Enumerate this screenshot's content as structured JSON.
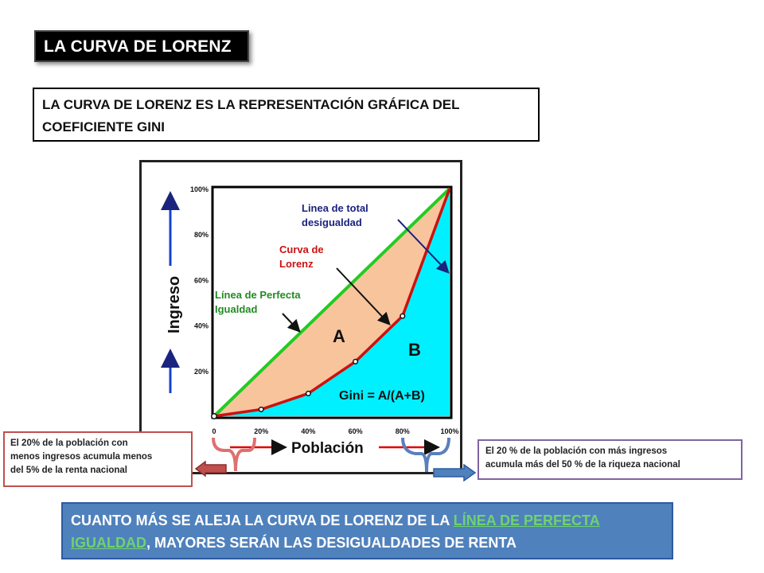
{
  "title": "LA CURVA DE LORENZ",
  "subtitle": {
    "line1": "LA CURVA DE LORENZ ES LA REPRESENTACIÓN GRÁFICA DEL",
    "line2": "COEFICIENTE GINI"
  },
  "notes": {
    "left": {
      "line1": "El 20% de la población con",
      "line2": "menos ingresos acumula menos",
      "line3": "del  5% de la renta nacional"
    },
    "right": {
      "line1": "El 20 % de la población con más ingresos",
      "line2": "acumula más del 50 % de la riqueza nacional"
    }
  },
  "conclusion": {
    "pre": "CUANTO MÁS SE ALEJA LA CURVA DE LORENZ DE LA ",
    "link_line1": "LÍNEA DE PERFECTA",
    "link_line2": "IGUALDAD",
    "post": ", MAYORES SERÁN LAS DESIGUALDADES DE RENTA"
  },
  "chart_data": {
    "type": "line",
    "xlabel": "Población",
    "ylabel": "Ingreso",
    "xlim": [
      0,
      100
    ],
    "ylim": [
      0,
      100
    ],
    "x_ticks": [
      "0",
      "20%",
      "40%",
      "60%",
      "80%",
      "100%"
    ],
    "y_ticks": [
      "20%",
      "40%",
      "60%",
      "80%",
      "100%"
    ],
    "series": [
      {
        "name": "Línea de Perfecta Igualdad",
        "x": [
          0,
          100
        ],
        "y": [
          0,
          100
        ],
        "color": "#22cc22"
      },
      {
        "name": "Curva de Lorenz",
        "x": [
          0,
          20,
          40,
          60,
          80,
          100
        ],
        "y": [
          0,
          3,
          10,
          24,
          44,
          100
        ],
        "color": "#cc1111"
      }
    ],
    "annotations": {
      "total_inequality_line1": "Linea de total",
      "total_inequality_line2": "desigualdad",
      "curve_label_line1": "Curva de",
      "curve_label_line2": "Lorenz",
      "equality_label_line1": "Línea de Perfecta",
      "equality_label_line2": "Igualdad",
      "area_a": "A",
      "area_b": "B",
      "gini_formula": "Gini = A/(A+B)"
    },
    "colors": {
      "area_a": "#f8c49c",
      "area_b": "#00f0ff",
      "axis_arrow": "#1144cc",
      "pointer_arrow": "#e00000",
      "bracket_left": "#e07070",
      "bracket_right": "#5b7fbd"
    }
  }
}
